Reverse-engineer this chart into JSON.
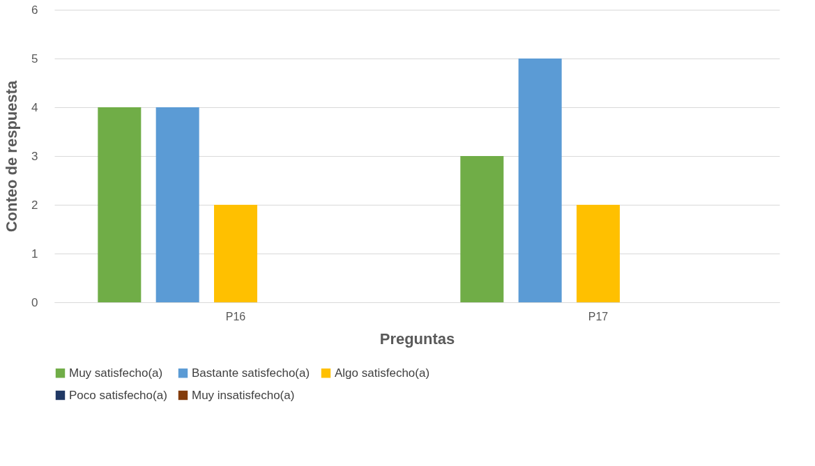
{
  "chart_data": {
    "type": "bar",
    "xlabel": "Preguntas",
    "ylabel": "Conteo de respuesta",
    "categories": [
      "P16",
      "P17"
    ],
    "series": [
      {
        "name": "Muy satisfecho(a)",
        "color": "#70ad47",
        "values": [
          4,
          3
        ]
      },
      {
        "name": "Bastante satisfecho(a)",
        "color": "#5b9bd5",
        "values": [
          4,
          5
        ]
      },
      {
        "name": "Algo satisfecho(a)",
        "color": "#ffc000",
        "values": [
          2,
          2
        ]
      },
      {
        "name": "Poco satisfecho(a)",
        "color": "#203864",
        "values": [
          0,
          0
        ]
      },
      {
        "name": "Muy insatisfecho(a)",
        "color": "#843c0c",
        "values": [
          0,
          0
        ]
      }
    ],
    "ylim": [
      0,
      6
    ],
    "yticks": [
      0,
      1,
      2,
      3,
      4,
      5,
      6
    ],
    "grid": "y",
    "legend": "bottom"
  }
}
